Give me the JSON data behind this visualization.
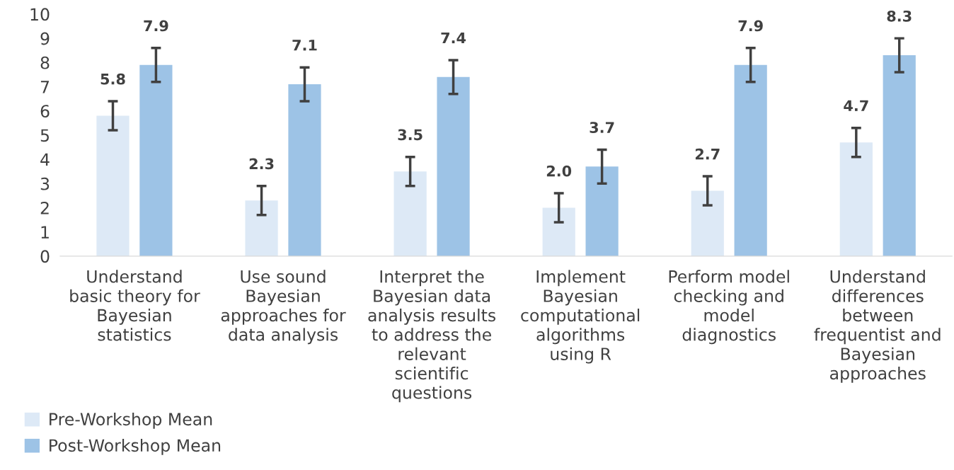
{
  "chart_data": {
    "type": "bar",
    "categories": [
      "Understand\nbasic theory for\nBayesian\nstatistics",
      "Use sound\nBayesian\napproaches for\ndata analysis",
      "Interpret the\nBayesian data\nanalysis results\nto address the\nrelevant\nscientific\nquestions",
      "Implement\nBayesian\ncomputational\nalgorithms\nusing R",
      "Perform model\nchecking and\nmodel\ndiagnostics",
      "Understand\ndifferences\nbetween\nfrequentist and\nBayesian\napproaches"
    ],
    "series": [
      {
        "name": "Pre-Workshop Mean",
        "color": "#dde9f6",
        "values": [
          5.8,
          2.3,
          3.5,
          2.0,
          2.7,
          4.7
        ],
        "value_labels": [
          "5.8",
          "2.3",
          "3.5",
          "2.0",
          "2.7",
          "4.7"
        ],
        "errors": [
          0.6,
          0.6,
          0.6,
          0.6,
          0.6,
          0.6
        ]
      },
      {
        "name": "Post-Workshop Mean",
        "color": "#9dc3e6",
        "values": [
          7.9,
          7.1,
          7.4,
          3.7,
          7.9,
          8.3
        ],
        "value_labels": [
          "7.9",
          "7.1",
          "7.4",
          "3.7",
          "7.9",
          "8.3"
        ],
        "errors": [
          0.7,
          0.7,
          0.7,
          0.7,
          0.7,
          0.7
        ]
      }
    ],
    "ylim": [
      0,
      10
    ],
    "yticks": [
      0,
      1,
      2,
      3,
      4,
      5,
      6,
      7,
      8,
      9,
      10
    ],
    "grid": false,
    "legend": "bottom left"
  }
}
